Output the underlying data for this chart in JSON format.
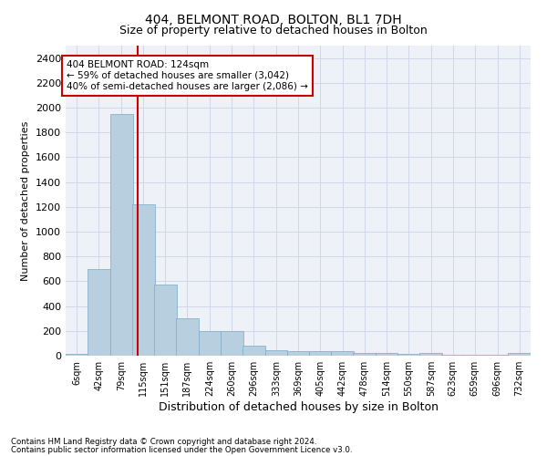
{
  "title": "404, BELMONT ROAD, BOLTON, BL1 7DH",
  "subtitle": "Size of property relative to detached houses in Bolton",
  "xlabel": "Distribution of detached houses by size in Bolton",
  "ylabel": "Number of detached properties",
  "footnote1": "Contains HM Land Registry data © Crown copyright and database right 2024.",
  "footnote2": "Contains public sector information licensed under the Open Government Licence v3.0.",
  "annotation_line1": "404 BELMONT ROAD: 124sqm",
  "annotation_line2": "← 59% of detached houses are smaller (3,042)",
  "annotation_line3": "40% of semi-detached houses are larger (2,086) →",
  "bar_color": "#b8cfe0",
  "bar_edge_color": "#7aaac8",
  "grid_color": "#d0d8e8",
  "marker_line_color": "#cc0000",
  "marker_value": 124,
  "categories": [
    "6sqm",
    "42sqm",
    "79sqm",
    "115sqm",
    "151sqm",
    "187sqm",
    "224sqm",
    "260sqm",
    "296sqm",
    "333sqm",
    "369sqm",
    "405sqm",
    "442sqm",
    "478sqm",
    "514sqm",
    "550sqm",
    "587sqm",
    "623sqm",
    "659sqm",
    "696sqm",
    "732sqm"
  ],
  "bin_starts": [
    6,
    42,
    79,
    115,
    151,
    187,
    224,
    260,
    296,
    333,
    369,
    405,
    442,
    478,
    514,
    550,
    587,
    623,
    659,
    696,
    732
  ],
  "bin_width": 37,
  "values": [
    15,
    700,
    1950,
    1220,
    570,
    305,
    200,
    200,
    80,
    45,
    38,
    35,
    35,
    20,
    20,
    15,
    20,
    5,
    5,
    5,
    20
  ],
  "ylim": [
    0,
    2500
  ],
  "yticks": [
    0,
    200,
    400,
    600,
    800,
    1000,
    1200,
    1400,
    1600,
    1800,
    2000,
    2200,
    2400
  ],
  "background_color": "#eef2f8",
  "title_fontsize": 10,
  "subtitle_fontsize": 9
}
